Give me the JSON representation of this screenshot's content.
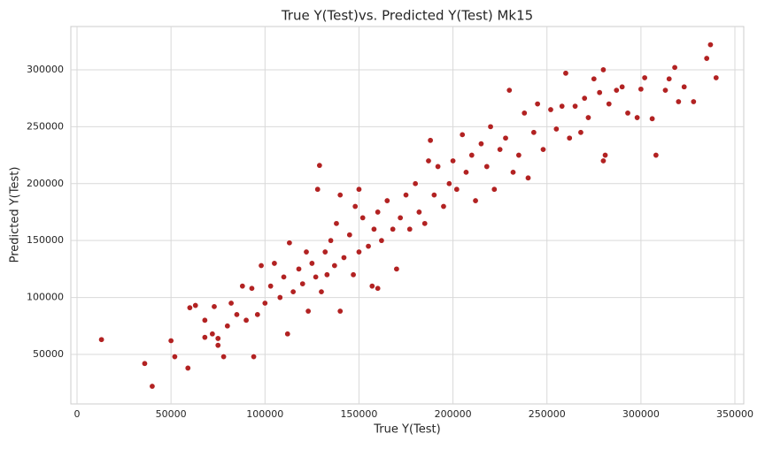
{
  "chart_data": {
    "type": "scatter",
    "title": "True Y(Test)vs. Predicted Y(Test) Mk15",
    "xlabel": "True Y(Test)",
    "ylabel": "Predicted Y(Test)",
    "color": "#b22222",
    "grid": true,
    "xlim": [
      -3300,
      354700
    ],
    "ylim": [
      6500,
      338000
    ],
    "xticks": [
      0,
      50000,
      100000,
      150000,
      200000,
      250000,
      300000,
      350000
    ],
    "yticks": [
      50000,
      100000,
      150000,
      200000,
      250000,
      300000
    ],
    "x": [
      13000,
      36000,
      40000,
      50000,
      52000,
      59000,
      60000,
      63000,
      68000,
      68000,
      72000,
      73000,
      75000,
      75000,
      78000,
      80000,
      82000,
      85000,
      88000,
      90000,
      93000,
      94000,
      96000,
      98000,
      100000,
      103000,
      105000,
      108000,
      110000,
      112000,
      113000,
      115000,
      118000,
      120000,
      122000,
      123000,
      125000,
      127000,
      128000,
      129000,
      130000,
      132000,
      133000,
      135000,
      137000,
      138000,
      140000,
      140000,
      142000,
      145000,
      147000,
      148000,
      150000,
      150000,
      152000,
      155000,
      157000,
      158000,
      160000,
      160000,
      162000,
      165000,
      168000,
      170000,
      172000,
      175000,
      177000,
      180000,
      182000,
      185000,
      187000,
      188000,
      190000,
      192000,
      195000,
      198000,
      200000,
      202000,
      205000,
      207000,
      210000,
      212000,
      215000,
      218000,
      220000,
      222000,
      225000,
      228000,
      230000,
      232000,
      235000,
      238000,
      240000,
      243000,
      245000,
      248000,
      252000,
      255000,
      258000,
      260000,
      262000,
      265000,
      268000,
      270000,
      272000,
      275000,
      278000,
      280000,
      280000,
      281000,
      283000,
      287000,
      290000,
      293000,
      298000,
      300000,
      302000,
      306000,
      308000,
      313000,
      315000,
      318000,
      320000,
      323000,
      328000,
      335000,
      337000,
      340000
    ],
    "y": [
      63000,
      42000,
      22000,
      62000,
      48000,
      38000,
      91000,
      93000,
      65000,
      80000,
      68000,
      92000,
      58000,
      64000,
      48000,
      75000,
      95000,
      85000,
      110000,
      80000,
      108000,
      48000,
      85000,
      128000,
      95000,
      110000,
      130000,
      100000,
      118000,
      68000,
      148000,
      105000,
      125000,
      112000,
      140000,
      88000,
      130000,
      118000,
      195000,
      216000,
      105000,
      140000,
      120000,
      150000,
      128000,
      165000,
      88000,
      190000,
      135000,
      155000,
      120000,
      180000,
      140000,
      195000,
      170000,
      145000,
      110000,
      160000,
      108000,
      175000,
      150000,
      185000,
      160000,
      125000,
      170000,
      190000,
      160000,
      200000,
      175000,
      165000,
      220000,
      238000,
      190000,
      215000,
      180000,
      200000,
      220000,
      195000,
      243000,
      210000,
      225000,
      185000,
      235000,
      215000,
      250000,
      195000,
      230000,
      240000,
      282000,
      210000,
      225000,
      262000,
      205000,
      245000,
      270000,
      230000,
      265000,
      248000,
      268000,
      297000,
      240000,
      268000,
      245000,
      275000,
      258000,
      292000,
      280000,
      300000,
      220000,
      225000,
      270000,
      282000,
      285000,
      262000,
      258000,
      283000,
      293000,
      257000,
      225000,
      282000,
      292000,
      302000,
      272000,
      285000,
      272000,
      310000,
      322000,
      293000
    ]
  }
}
